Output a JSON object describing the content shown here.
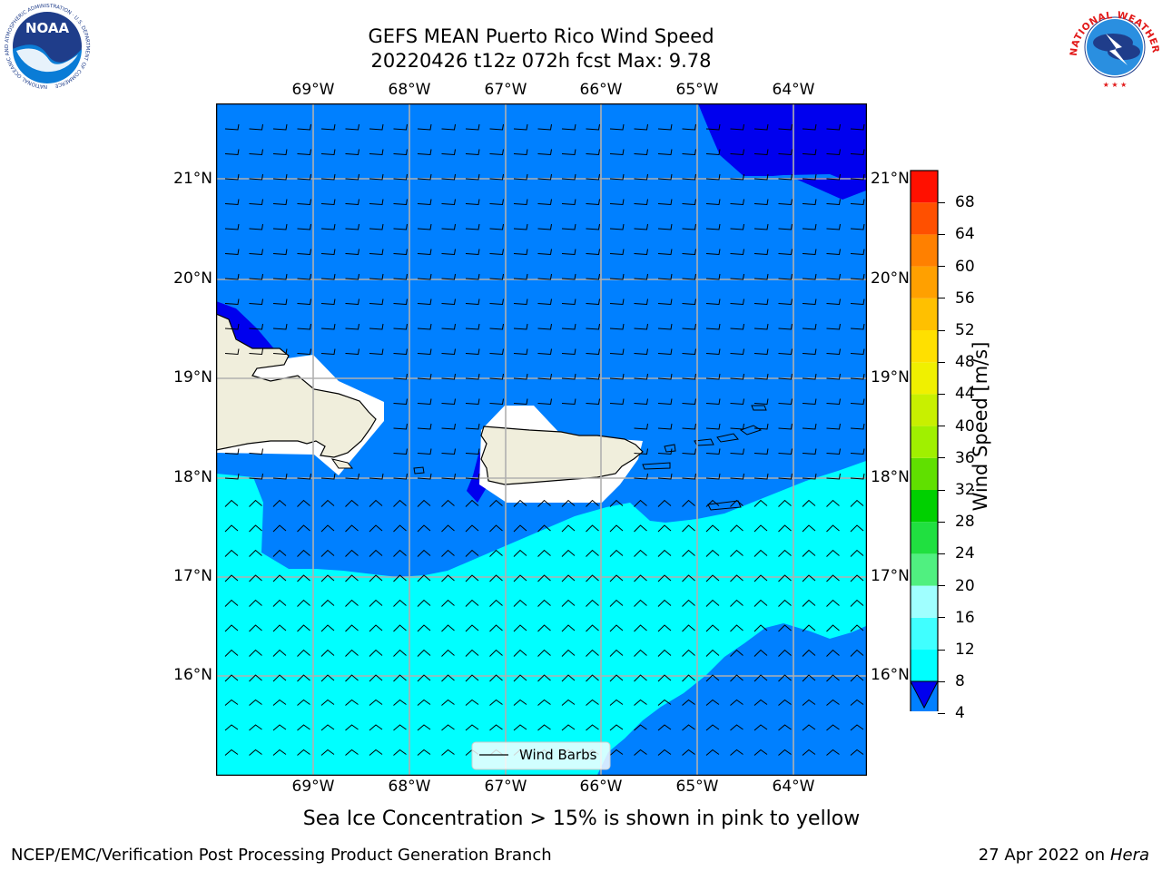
{
  "title": {
    "line1": "GEFS MEAN Puerto Rico Wind Speed",
    "line2": "20220426 t12z 072h fcst   Max: 9.78"
  },
  "logos": {
    "noaa_text": "NOAA",
    "noaa_ring": "NATIONAL OCEANIC AND ATMOSPHERIC ADMINISTRATION · U.S. DEPARTMENT OF COMMERCE",
    "nws_ring": "NATIONAL WEATHER SERVICE"
  },
  "map": {
    "lon_labels": [
      "69°W",
      "68°W",
      "67°W",
      "66°W",
      "65°W",
      "64°W"
    ],
    "lat_labels": [
      "21°N",
      "20°N",
      "19°N",
      "18°N",
      "17°N",
      "16°N"
    ],
    "legend_label": "Wind Barbs",
    "colors": {
      "speed_4_8": "#0080ff",
      "speed_below_4": "#0000ee",
      "speed_8_12": "#00ffff",
      "land": "#f0eedc",
      "grid": "#b0b0b0"
    }
  },
  "colorbar": {
    "label": "Wind Speed [m/s]",
    "ticks": [
      "4",
      "8",
      "12",
      "16",
      "20",
      "24",
      "28",
      "32",
      "36",
      "40",
      "44",
      "48",
      "52",
      "56",
      "60",
      "64",
      "68"
    ],
    "colors": [
      "#0080ff",
      "#00ffff",
      "#40ffff",
      "#a0ffff",
      "#50f080",
      "#20e040",
      "#00d000",
      "#60e000",
      "#a0f000",
      "#c8f000",
      "#f0f000",
      "#ffe000",
      "#ffc000",
      "#ffa000",
      "#ff8000",
      "#ff5000",
      "#ff1000"
    ],
    "under_color": "#0000ee"
  },
  "caption": "Sea Ice Concentration > 15% is shown in pink to yellow",
  "footer": {
    "left": "NCEP/EMC/Verification Post Processing Product Generation Branch",
    "date": "27 Apr 2022 on ",
    "machine": "Hera"
  }
}
